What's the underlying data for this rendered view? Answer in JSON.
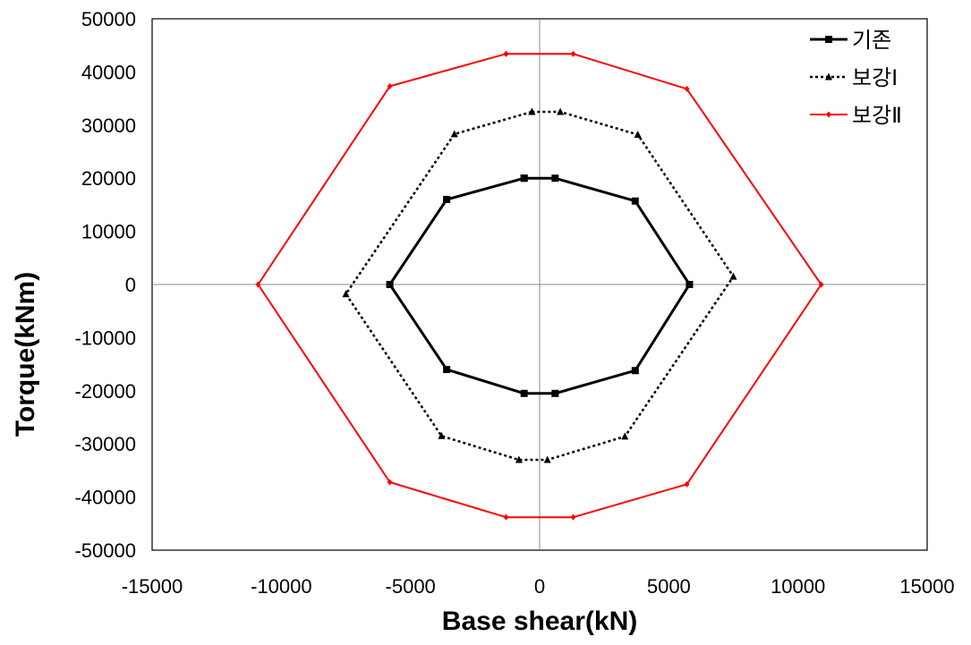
{
  "chart_data": {
    "type": "scatter",
    "xlabel": "Base shear(kN)",
    "ylabel": "Torque(kNm)",
    "xlim": [
      -15000,
      15000
    ],
    "ylim": [
      -50000,
      50000
    ],
    "x_ticks": [
      "-15000",
      "-10000",
      "-5000",
      "0",
      "5000",
      "10000",
      "15000"
    ],
    "y_ticks": [
      "50000",
      "40000",
      "30000",
      "20000",
      "10000",
      "0",
      "-10000",
      "-20000",
      "-30000",
      "-40000",
      "-50000"
    ],
    "grid": false,
    "legend_position": "top-right",
    "series": [
      {
        "name": "기존",
        "color": "#000000",
        "line_style": "solid",
        "marker": "square",
        "points": [
          [
            -600,
            20000
          ],
          [
            600,
            20000
          ],
          [
            3700,
            15700
          ],
          [
            5800,
            0
          ],
          [
            3700,
            -16200
          ],
          [
            600,
            -20500
          ],
          [
            -600,
            -20500
          ],
          [
            -3600,
            -16000
          ],
          [
            -5800,
            0
          ],
          [
            -3600,
            16000
          ],
          [
            -600,
            20000
          ]
        ]
      },
      {
        "name": "보강Ⅰ",
        "color": "#000000",
        "line_style": "dotted",
        "marker": "triangle",
        "points": [
          [
            -300,
            32500
          ],
          [
            800,
            32500
          ],
          [
            3800,
            28200
          ],
          [
            7500,
            1500
          ],
          [
            3300,
            -28600
          ],
          [
            300,
            -33000
          ],
          [
            -800,
            -33000
          ],
          [
            -3800,
            -28500
          ],
          [
            -7500,
            -1800
          ],
          [
            -3300,
            28300
          ],
          [
            -300,
            32500
          ]
        ]
      },
      {
        "name": "보강Ⅱ",
        "color": "#ff0000",
        "line_style": "solid",
        "marker": "diamond",
        "points": [
          [
            -1300,
            43400
          ],
          [
            1300,
            43400
          ],
          [
            5700,
            36800
          ],
          [
            10900,
            0
          ],
          [
            5700,
            -37600
          ],
          [
            1300,
            -43800
          ],
          [
            -1300,
            -43800
          ],
          [
            -5800,
            -37200
          ],
          [
            -10900,
            0
          ],
          [
            -5800,
            37300
          ],
          [
            -1300,
            43400
          ]
        ]
      }
    ]
  }
}
